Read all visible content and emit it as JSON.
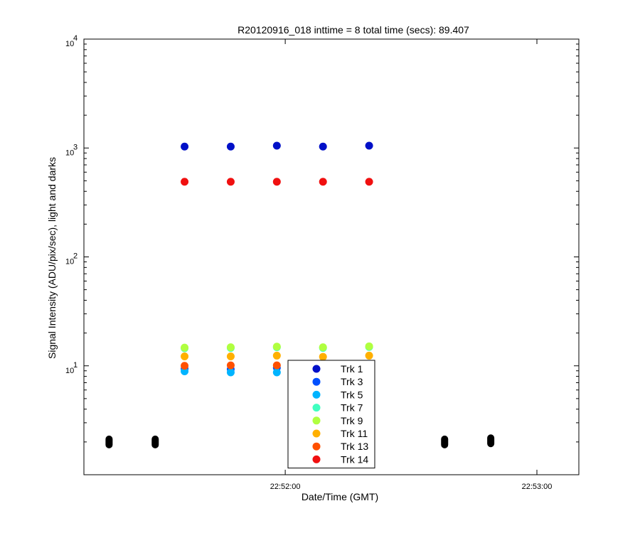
{
  "chart_data": {
    "type": "scatter",
    "title": "R20120916_018 inttime = 8 total time (secs): 89.407",
    "xlabel": "Date/Time (GMT)",
    "ylabel": "Signal Intensity (ADU/pix/sec), light and darks",
    "y_scale": "log",
    "ylim": [
      1,
      10000
    ],
    "y_ticks": [
      {
        "base": "10",
        "exp": "1"
      },
      {
        "base": "10",
        "exp": "2"
      },
      {
        "base": "10",
        "exp": "3"
      },
      {
        "base": "10",
        "exp": "4"
      }
    ],
    "x_ticks": [
      "22:52:00",
      "22:53:00"
    ],
    "xlim": [
      "22:51:12",
      "22:53:10"
    ],
    "grid": false,
    "legend_position": "bottom-center",
    "series": [
      {
        "name": "Trk 1",
        "color": "#0010c8",
        "x": [
          "22:51:36",
          "22:51:47",
          "22:51:58",
          "22:52:09",
          "22:52:20"
        ],
        "y": [
          1030,
          1030,
          1050,
          1030,
          1050
        ]
      },
      {
        "name": "Trk 3",
        "color": "#0050ff",
        "x": [
          "22:51:36",
          "22:51:47",
          "22:51:58",
          "22:52:09",
          "22:52:20"
        ],
        "y": [
          9.4,
          9.3,
          9.6,
          9.4,
          9.3
        ]
      },
      {
        "name": "Trk 5",
        "color": "#00b4ff",
        "x": [
          "22:51:36",
          "22:51:47",
          "22:51:58",
          "22:52:09",
          "22:52:20"
        ],
        "y": [
          8.9,
          8.7,
          8.7,
          8.6,
          8.9
        ]
      },
      {
        "name": "Trk 7",
        "color": "#40ffc0",
        "x": [
          "22:51:36",
          "22:51:47",
          "22:51:58",
          "22:52:09",
          "22:52:20"
        ],
        "y": [
          14.5,
          14.6,
          14.8,
          14.6,
          14.9
        ]
      },
      {
        "name": "Trk 9",
        "color": "#b0ff40",
        "x": [
          "22:51:36",
          "22:51:47",
          "22:51:58",
          "22:52:09",
          "22:52:20"
        ],
        "y": [
          14.7,
          14.8,
          15.0,
          14.8,
          15.1
        ]
      },
      {
        "name": "Trk 11",
        "color": "#ffb000",
        "x": [
          "22:51:36",
          "22:51:47",
          "22:51:58",
          "22:52:09",
          "22:52:20"
        ],
        "y": [
          12.2,
          12.2,
          12.4,
          12.1,
          12.4
        ]
      },
      {
        "name": "Trk 13",
        "color": "#ff5000",
        "x": [
          "22:51:36",
          "22:51:47",
          "22:51:58",
          "22:52:09",
          "22:52:20"
        ],
        "y": [
          10.0,
          10.1,
          10.1,
          10.0,
          10.0
        ]
      },
      {
        "name": "Trk 14",
        "color": "#f01010",
        "x": [
          "22:51:36",
          "22:51:47",
          "22:51:58",
          "22:52:09",
          "22:52:20"
        ],
        "y": [
          490,
          490,
          490,
          490,
          490
        ]
      },
      {
        "name": "",
        "color": "#000000",
        "x": [
          "22:51:18",
          "22:51:29",
          "22:52:38",
          "22:52:49"
        ],
        "y": [
          2.0,
          2.0,
          2.0,
          2.05
        ]
      }
    ]
  }
}
